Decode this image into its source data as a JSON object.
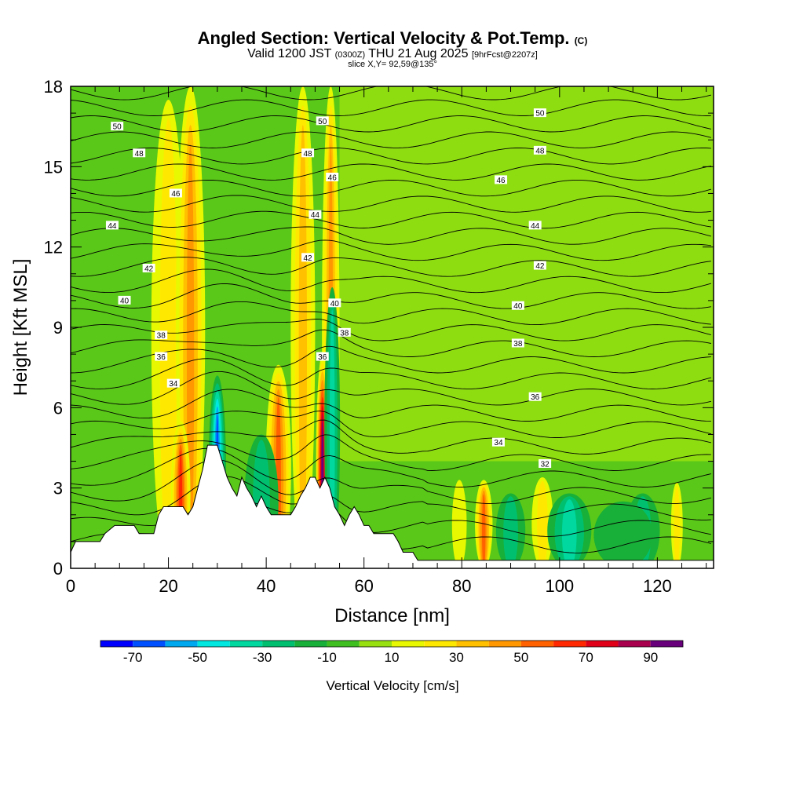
{
  "title": {
    "main": "Angled Section: Vertical Velocity & Pot.Temp.",
    "main_suffix": "(C)",
    "valid_prefix": "Valid 1200 JST",
    "valid_zulu": "(0300Z)",
    "valid_date": "THU 21 Aug 2025",
    "forecast": "[9hrFcst@2207z]",
    "slice": "slice X,Y= 92,59@135°"
  },
  "chart_data": {
    "type": "heatmap",
    "xlabel": "Distance [nm]",
    "ylabel": "Height [Kft MSL]",
    "xlim": [
      0,
      131.5
    ],
    "ylim": [
      0,
      18
    ],
    "x_ticks": [
      0,
      20,
      40,
      60,
      80,
      100,
      120
    ],
    "y_ticks": [
      0,
      3,
      6,
      9,
      12,
      15,
      18
    ],
    "colorbar": {
      "label": "Vertical Velocity [cm/s]",
      "ticks": [
        -70,
        -50,
        -30,
        -10,
        10,
        30,
        50,
        70,
        90
      ],
      "bins": [
        -80,
        -70,
        -60,
        -50,
        -40,
        -30,
        -20,
        -10,
        0,
        10,
        20,
        30,
        40,
        50,
        60,
        70,
        80,
        90,
        100
      ],
      "colors": [
        "#0000ff",
        "#0050ff",
        "#00a8f0",
        "#00e8e0",
        "#00d8a0",
        "#00c070",
        "#18b038",
        "#40c020",
        "#98e010",
        "#e8f800",
        "#ffe800",
        "#ffc000",
        "#ff9800",
        "#ff6000",
        "#ff2800",
        "#e00018",
        "#a8004c",
        "#68007c"
      ]
    },
    "background_field_color": "#5ac818",
    "updraft_columns": [
      {
        "x": 20,
        "xw": 3.5,
        "ytop": 17.5,
        "value": 25
      },
      {
        "x": 24.5,
        "xw": 3.0,
        "ytop": 18,
        "value": 45
      },
      {
        "x": 22.5,
        "xw": 2.0,
        "ytop": 5.5,
        "value": 65
      },
      {
        "x": 42.5,
        "xw": 2.6,
        "ytop": 7.6,
        "value": 50
      },
      {
        "x": 47.5,
        "xw": 2.5,
        "ytop": 18,
        "value": 30
      },
      {
        "x": 53.2,
        "xw": 1.8,
        "ytop": 18,
        "value": 45
      },
      {
        "x": 51.5,
        "xw": 1.3,
        "ytop": 8.0,
        "value": 90
      },
      {
        "x": 84.5,
        "xw": 1.8,
        "ytop": 3.3,
        "value": 55
      },
      {
        "x": 96.5,
        "xw": 2.2,
        "ytop": 3.4,
        "value": 20
      },
      {
        "x": 79.5,
        "xw": 1.5,
        "ytop": 3.3,
        "value": 15
      },
      {
        "x": 124,
        "xw": 1.2,
        "ytop": 3.2,
        "value": 20
      }
    ],
    "downdraft_columns": [
      {
        "x": 30,
        "xw": 1.8,
        "ytop": 7.2,
        "value": -60
      },
      {
        "x": 39,
        "xw": 3.5,
        "ytop": 5.0,
        "value": -25
      },
      {
        "x": 53.5,
        "xw": 1.6,
        "ytop": 10.5,
        "value": -30
      },
      {
        "x": 102,
        "xw": 4.5,
        "ytop": 2.8,
        "value": -30
      },
      {
        "x": 117,
        "xw": 3.5,
        "ytop": 2.8,
        "value": -25
      },
      {
        "x": 90,
        "xw": 3.0,
        "ytop": 2.8,
        "value": -20
      },
      {
        "x": 113,
        "xw": 6.0,
        "ytop": 2.5,
        "value": -10
      }
    ],
    "upper_band_value": 5,
    "terrain": [
      [
        0,
        0.6
      ],
      [
        1,
        1.0
      ],
      [
        6,
        1.0
      ],
      [
        7,
        1.3
      ],
      [
        9,
        1.6
      ],
      [
        13,
        1.6
      ],
      [
        14,
        1.3
      ],
      [
        17,
        1.3
      ],
      [
        18,
        2.0
      ],
      [
        19,
        2.3
      ],
      [
        23,
        2.3
      ],
      [
        24,
        2.0
      ],
      [
        25,
        2.3
      ],
      [
        26,
        3.0
      ],
      [
        27,
        3.7
      ],
      [
        28,
        4.6
      ],
      [
        30,
        4.6
      ],
      [
        31,
        4.0
      ],
      [
        32,
        3.4
      ],
      [
        33,
        3.0
      ],
      [
        34,
        2.7
      ],
      [
        35,
        3.4
      ],
      [
        36,
        3.0
      ],
      [
        37,
        2.7
      ],
      [
        38,
        2.3
      ],
      [
        39,
        2.7
      ],
      [
        40,
        2.3
      ],
      [
        41,
        2.0
      ],
      [
        45,
        2.0
      ],
      [
        46,
        2.3
      ],
      [
        47,
        2.7
      ],
      [
        48,
        3.0
      ],
      [
        49,
        3.4
      ],
      [
        50,
        3.4
      ],
      [
        51,
        3.0
      ],
      [
        52,
        3.4
      ],
      [
        53,
        3.0
      ],
      [
        54,
        2.3
      ],
      [
        55,
        2.0
      ],
      [
        56,
        1.6
      ],
      [
        57,
        2.0
      ],
      [
        58,
        2.3
      ],
      [
        59,
        2.0
      ],
      [
        60,
        1.6
      ],
      [
        61,
        1.6
      ],
      [
        62,
        1.3
      ],
      [
        66,
        1.3
      ],
      [
        67,
        1.0
      ],
      [
        68,
        0.6
      ],
      [
        70,
        0.6
      ],
      [
        71,
        0.3
      ],
      [
        72,
        0.3
      ],
      [
        131.5,
        0.3
      ]
    ],
    "isentrope_labels": [
      {
        "text": "50",
        "x": 9.5,
        "y": 16.5
      },
      {
        "text": "48",
        "x": 14,
        "y": 15.5
      },
      {
        "text": "46",
        "x": 21.5,
        "y": 14.0
      },
      {
        "text": "44",
        "x": 8.5,
        "y": 12.8
      },
      {
        "text": "42",
        "x": 16,
        "y": 11.2
      },
      {
        "text": "40",
        "x": 11,
        "y": 10.0
      },
      {
        "text": "38",
        "x": 18.5,
        "y": 8.7
      },
      {
        "text": "36",
        "x": 18.5,
        "y": 7.9
      },
      {
        "text": "34",
        "x": 21,
        "y": 6.9
      },
      {
        "text": "50",
        "x": 51.5,
        "y": 16.7
      },
      {
        "text": "48",
        "x": 48.5,
        "y": 15.5
      },
      {
        "text": "46",
        "x": 53.5,
        "y": 14.6
      },
      {
        "text": "44",
        "x": 50,
        "y": 13.2
      },
      {
        "text": "42",
        "x": 48.5,
        "y": 11.6
      },
      {
        "text": "40",
        "x": 54,
        "y": 9.9
      },
      {
        "text": "38",
        "x": 56,
        "y": 8.8
      },
      {
        "text": "36",
        "x": 51.5,
        "y": 7.9
      },
      {
        "text": "50",
        "x": 96,
        "y": 17.0
      },
      {
        "text": "48",
        "x": 96,
        "y": 15.6
      },
      {
        "text": "46",
        "x": 88,
        "y": 14.5
      },
      {
        "text": "44",
        "x": 95,
        "y": 12.8
      },
      {
        "text": "42",
        "x": 96,
        "y": 11.3
      },
      {
        "text": "40",
        "x": 91.5,
        "y": 9.8
      },
      {
        "text": "38",
        "x": 91.5,
        "y": 8.4
      },
      {
        "text": "36",
        "x": 95,
        "y": 6.4
      },
      {
        "text": "34",
        "x": 87.5,
        "y": 4.7
      },
      {
        "text": "32",
        "x": 97,
        "y": 3.9
      }
    ]
  }
}
